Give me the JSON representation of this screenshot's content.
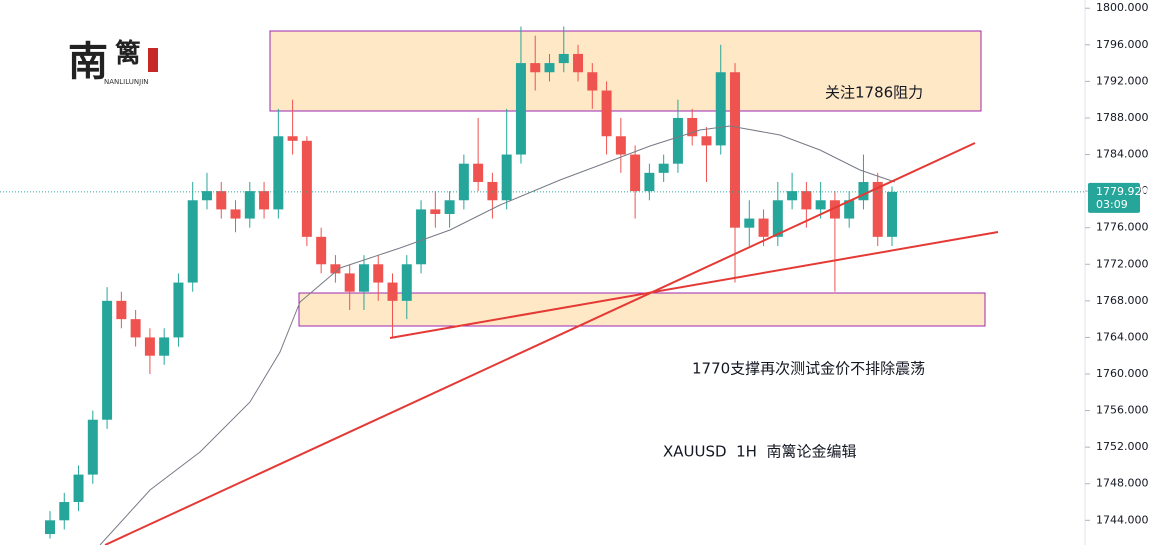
{
  "chart_data": {
    "type": "candlestick",
    "categories": [
      null,
      null,
      null,
      null,
      null,
      null,
      null,
      null,
      null,
      null,
      null,
      null,
      null,
      null,
      null,
      null,
      null,
      null,
      null,
      null,
      null,
      null,
      null,
      null,
      null,
      null,
      null,
      null,
      null,
      null,
      null,
      null,
      null,
      null,
      null,
      null,
      null,
      null,
      null,
      null,
      null,
      null,
      null,
      null,
      null,
      null,
      null,
      null,
      null,
      null,
      null,
      null,
      null,
      null,
      null,
      null,
      null,
      null,
      null,
      null
    ],
    "open": [
      1742.5,
      1744,
      1746,
      1749,
      1755,
      1768,
      1766,
      1764,
      1762,
      1764,
      1770,
      1779,
      1780,
      1778,
      1777,
      1780,
      1778,
      1786,
      1785.5,
      1775,
      1772,
      1771,
      1769,
      1772,
      1770,
      1768,
      1772,
      1778,
      1777.5,
      1779,
      1783,
      1781,
      1779,
      1784,
      1794,
      1793,
      1794,
      1795,
      1793,
      1791,
      1786,
      1784,
      1780,
      1782,
      1783,
      1788,
      1786,
      1785,
      1793,
      1776,
      1777,
      1775,
      1779,
      1780,
      1778,
      1779,
      1777,
      1779,
      1781,
      1775
    ],
    "high": [
      1745,
      1747,
      1750,
      1756,
      1769.5,
      1769,
      1767,
      1765,
      1765,
      1771,
      1781,
      1782,
      1781,
      1779,
      1781,
      1781,
      1789,
      1790,
      1786,
      1776,
      1773,
      1772,
      1773,
      1773,
      1771,
      1773,
      1779,
      1780,
      1780,
      1784,
      1788,
      1782,
      1789,
      1798,
      1797,
      1795,
      1798,
      1796,
      1794,
      1792,
      1788,
      1785,
      1783,
      1784,
      1790,
      1789,
      1787,
      1796,
      1794,
      1779,
      1778,
      1781,
      1782,
      1781,
      1781,
      1780,
      1780,
      1784,
      1782,
      1780.5
    ],
    "low": [
      1742,
      1743,
      1745,
      1748,
      1754,
      1765,
      1763,
      1760,
      1761,
      1763,
      1769,
      1778,
      1777,
      1775.5,
      1776,
      1777,
      1777,
      1784,
      1774,
      1771,
      1770,
      1767,
      1767,
      1768,
      1764,
      1766,
      1771,
      1776,
      1776,
      1778,
      1780,
      1777,
      1778,
      1783,
      1791,
      1792,
      1793,
      1792,
      1789,
      1784,
      1782,
      1777,
      1779,
      1781,
      1782,
      1785,
      1781,
      1784,
      1770,
      1774,
      1774,
      1774,
      1778,
      1776,
      1777,
      1769,
      1776,
      1778,
      1774,
      1774
    ],
    "close": [
      1744,
      1746,
      1749,
      1755,
      1768,
      1766,
      1764,
      1762,
      1764,
      1770,
      1779,
      1780,
      1778,
      1777,
      1780,
      1778,
      1786,
      1785.5,
      1775,
      1772,
      1771,
      1769,
      1772,
      1770,
      1768,
      1772,
      1778,
      1777.5,
      1779,
      1783,
      1781,
      1779,
      1784,
      1794,
      1793,
      1794,
      1795,
      1793,
      1791,
      1786,
      1784,
      1780,
      1782,
      1783,
      1788,
      1786,
      1785,
      1793,
      1776,
      1777,
      1775,
      1779,
      1780,
      1778,
      1779,
      1777,
      1779,
      1781,
      1775,
      1779.92
    ],
    "up_color": "#26a69a",
    "down_color": "#ef5350",
    "ylim": [
      1741.3,
      1800.9
    ],
    "yticks": [
      {
        "value": 1744,
        "label": "1744.000"
      },
      {
        "value": 1748,
        "label": "1748.000"
      },
      {
        "value": 1752,
        "label": "1752.000"
      },
      {
        "value": 1756,
        "label": "1756.000"
      },
      {
        "value": 1760,
        "label": "1760.000"
      },
      {
        "value": 1764,
        "label": "1764.000"
      },
      {
        "value": 1768,
        "label": "1768.000"
      },
      {
        "value": 1772,
        "label": "1772.000"
      },
      {
        "value": 1776,
        "label": "1776.000"
      },
      {
        "value": 1780,
        "label": "1780.000"
      },
      {
        "value": 1784,
        "label": "1784.000"
      },
      {
        "value": 1788,
        "label": "1788.000"
      },
      {
        "value": 1792,
        "label": "1792.000"
      },
      {
        "value": 1796,
        "label": "1796.000"
      },
      {
        "value": 1800,
        "label": "1800.000"
      }
    ],
    "last_price": {
      "value": 1779.92,
      "label": "1779.920"
    },
    "countdown": "03:09",
    "annotations": [
      "关注1786阻力",
      "1770支撑再次测试金价不排除震荡",
      "XAUUSD  1H  南篱论金编辑"
    ],
    "logo": {
      "chars": [
        "南",
        "篱"
      ],
      "subtitle": "NANLILUNJIN"
    }
  }
}
